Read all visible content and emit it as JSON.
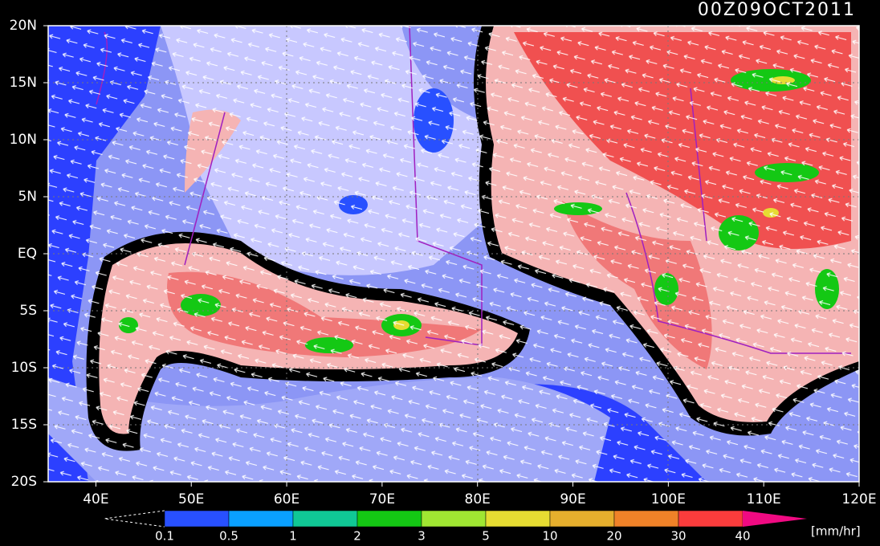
{
  "title": "00Z09OCT2011",
  "lat_labels": [
    "20N",
    "15N",
    "10N",
    "5N",
    "EQ",
    "5S",
    "10S",
    "15S",
    "20S"
  ],
  "lon_labels": [
    "40E",
    "50E",
    "60E",
    "70E",
    "80E",
    "90E",
    "100E",
    "110E",
    "120E"
  ],
  "colorbar": {
    "labels": [
      "0.1",
      "0.5",
      "1",
      "2",
      "3",
      "5",
      "10",
      "20",
      "30",
      "40"
    ],
    "colors": [
      "#2850ff",
      "#0aa0ff",
      "#10c896",
      "#14c814",
      "#a0e632",
      "#e6dc32",
      "#e6af2d",
      "#f08228",
      "#fa3c3c"
    ],
    "over_color": "#f00a82",
    "unit": "[mm/hr]"
  }
}
